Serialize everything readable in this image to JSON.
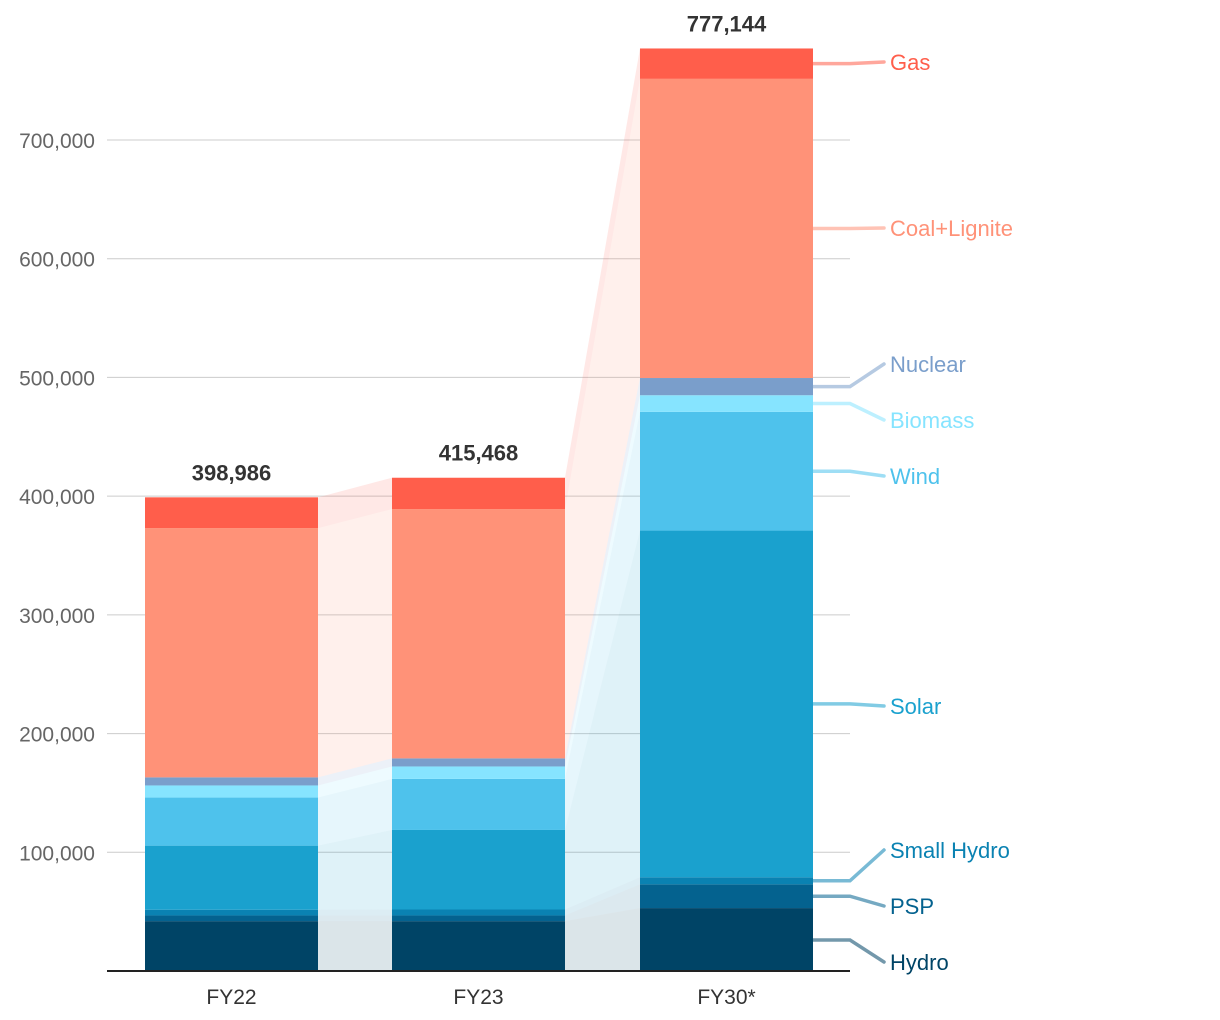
{
  "chart_data": {
    "type": "bar",
    "stacked": true,
    "title": "",
    "xlabel": "",
    "ylabel": "",
    "ylim": [
      0,
      780000
    ],
    "yticks": [
      100000,
      200000,
      300000,
      400000,
      500000,
      600000,
      700000
    ],
    "ytick_labels": [
      "100,000",
      "200,000",
      "300,000",
      "400,000",
      "500,000",
      "600,000",
      "700,000"
    ],
    "grid": true,
    "legend": "right",
    "categories": [
      "FY22",
      "FY23",
      "FY30*"
    ],
    "totals": [
      398986,
      415468,
      777144
    ],
    "total_labels": [
      "398,986",
      "415,468",
      "777,144"
    ],
    "series": [
      {
        "name": "Hydro",
        "color": "#004466",
        "values": [
          42000,
          42000,
          53000
        ]
      },
      {
        "name": "PSP",
        "color": "#04628f",
        "values": [
          4800,
          4800,
          20000
        ]
      },
      {
        "name": "Small Hydro",
        "color": "#0a82b2",
        "values": [
          4800,
          5000,
          6000
        ]
      },
      {
        "name": "Solar",
        "color": "#1aa1ce",
        "values": [
          54000,
          67000,
          292000
        ]
      },
      {
        "name": "Wind",
        "color": "#4ec2ec",
        "values": [
          40500,
          43000,
          100000
        ]
      },
      {
        "name": "Biomass",
        "color": "#86e4ff",
        "values": [
          10200,
          10500,
          14000
        ]
      },
      {
        "name": "Nuclear",
        "color": "#7a9ecb",
        "values": [
          6800,
          6800,
          14500
        ]
      },
      {
        "name": "Coal+Lignite",
        "color": "#ff9278",
        "values": [
          210000,
          210000,
          252000
        ]
      },
      {
        "name": "Gas",
        "color": "#ff5e4b",
        "values": [
          25900,
          26400,
          25600
        ]
      }
    ]
  }
}
